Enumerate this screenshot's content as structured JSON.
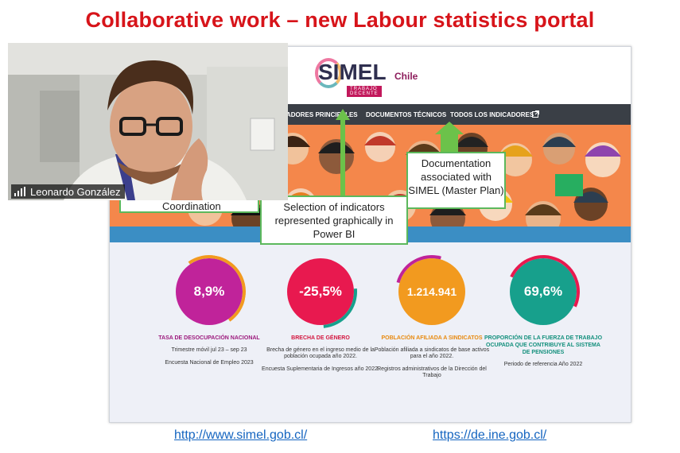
{
  "slide": {
    "title": "Collaborative work – new Labour statistics portal",
    "links": [
      {
        "text": "http://www.simel.gob.cl/"
      },
      {
        "text": "https://de.ine.gob.cl/"
      }
    ]
  },
  "webcam": {
    "participant_name": "Leonardo González"
  },
  "portal": {
    "logo_text": "SIMEL",
    "logo_country": "Chile",
    "logo_tagline": "TRABAJO DECENTE",
    "nav_items": [
      {
        "label": "ADORES PRINCIPALES"
      },
      {
        "label": "DOCUMENTOS TÉCNICOS"
      },
      {
        "label": "TODOS LOS INDICADORES"
      }
    ],
    "stats": [
      {
        "value": "8,9%",
        "title": "TASA DE DESOCUPACIÓN NACIONAL",
        "desc": "Trimestre móvil jul 23 – sep 23",
        "source": "Encuesta Nacional de Empleo 2023",
        "color": "#c0239a",
        "title_color": "#9c1a7d"
      },
      {
        "value": "-25,5%",
        "title": "BRECHA DE GÉNERO",
        "desc": "Brecha de género en el ingreso medio de la población ocupada año 2022.",
        "source": "Encuesta Suplementaria de Ingresos año 2022.",
        "color": "#e8194f",
        "title_color": "#d3163f"
      },
      {
        "value": "1.214.941",
        "title": "POBLACIÓN AFILIADA A SINDICATOS",
        "desc": "Población afiliada a sindicatos de base activos para el año 2022.",
        "source": "Registros administrativos de la Dirección del Trabajo",
        "color": "#f29a1f",
        "title_color": "#e88a10"
      },
      {
        "value": "69,6%",
        "title": "PROPORCIÓN DE LA FUERZA DE TRABAJO OCUPADA QUE CONTRIBUYE AL SISTEMA DE PENSIONES",
        "desc": "Periodo de referencia Año 2022",
        "source": "",
        "color": "#17a08c",
        "title_color": "#14907d"
      }
    ]
  },
  "callouts": {
    "coordination": "Coordination",
    "indicators": "Selection of indicators represented graphically in Power BI",
    "documentation": "Documentation associated with SIMEL (Master Plan)"
  },
  "colors": {
    "title_red": "#d7141a",
    "callout_green": "#5cb85c",
    "nav_dark": "#3a3f46"
  }
}
